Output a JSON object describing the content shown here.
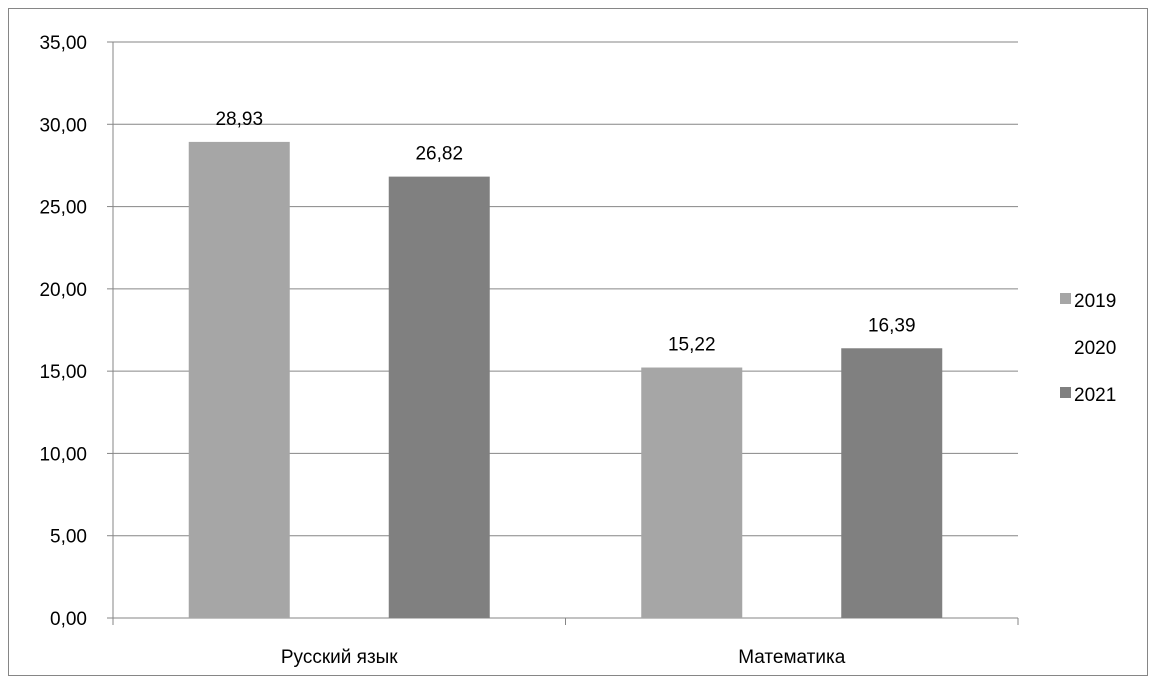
{
  "chart_data": {
    "type": "bar",
    "categories": [
      "Русский язык",
      "Математика"
    ],
    "series": [
      {
        "name": "2019",
        "values": [
          28.93,
          15.22
        ],
        "color": "#a6a6a6"
      },
      {
        "name": "2020",
        "values": [
          null,
          null
        ],
        "color": "#ffffff"
      },
      {
        "name": "2021",
        "values": [
          26.82,
          16.39
        ],
        "color": "#808080"
      }
    ],
    "data_labels": [
      [
        "28,93",
        "15,22"
      ],
      [
        null,
        null
      ],
      [
        "26,82",
        "16,39"
      ]
    ],
    "yticks": [
      "0,00",
      "5,00",
      "10,00",
      "15,00",
      "20,00",
      "25,00",
      "30,00",
      "35,00"
    ],
    "ylim": [
      0,
      35
    ],
    "ystep": 5,
    "grid": true,
    "legend_position": "right",
    "gridline_color": "#868686",
    "axis_color": "#868686"
  }
}
